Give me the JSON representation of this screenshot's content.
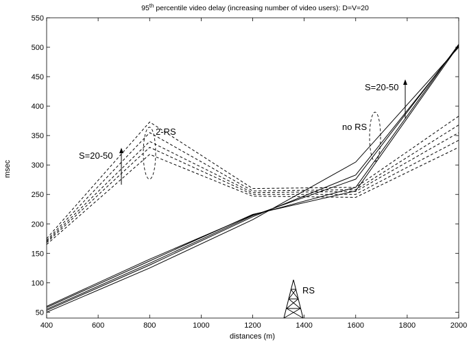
{
  "chart_data": {
    "type": "line",
    "title": {
      "prefix": "95",
      "superscript": "th",
      "rest": " percentile video delay (increasing number of video users): D=V=20"
    },
    "xlabel": "distances (m)",
    "ylabel": "msec",
    "xlim": [
      400,
      2000
    ],
    "ylim": [
      40,
      550
    ],
    "x_ticks": [
      400,
      600,
      800,
      1000,
      1200,
      1400,
      1600,
      1800,
      2000
    ],
    "y_ticks": [
      50,
      100,
      150,
      200,
      250,
      300,
      350,
      400,
      450,
      500,
      550
    ],
    "grid": false,
    "legend": "none",
    "x": [
      400,
      800,
      1200,
      1600,
      2000
    ],
    "groups": [
      {
        "label": "2-RS",
        "style": "dashed",
        "series": [
          {
            "values": [
              165,
              318,
              247,
              245,
              330
            ]
          },
          {
            "values": [
              168,
              330,
              250,
              250,
              342
            ]
          },
          {
            "values": [
              170,
              340,
              253,
              255,
              355
            ]
          },
          {
            "values": [
              172,
              355,
              256,
              258,
              368
            ]
          },
          {
            "values": [
              175,
              373,
              260,
              262,
              383
            ]
          }
        ]
      },
      {
        "label": "no RS",
        "style": "solid",
        "series": [
          {
            "values": [
              50,
              125,
              207,
              305,
              500
            ]
          },
          {
            "values": [
              53,
              130,
              212,
              283,
              502
            ]
          },
          {
            "values": [
              55,
              133,
              214,
              276,
              504
            ]
          },
          {
            "values": [
              58,
              137,
              216,
              256,
              503
            ]
          },
          {
            "values": [
              60,
              140,
              215,
              262,
              505
            ]
          }
        ]
      }
    ],
    "annotations": {
      "rs_tower": "RS",
      "two_rs": "2-RS",
      "no_rs": "no RS",
      "s_left": "S=20-50",
      "s_right": "S=20-50"
    }
  }
}
